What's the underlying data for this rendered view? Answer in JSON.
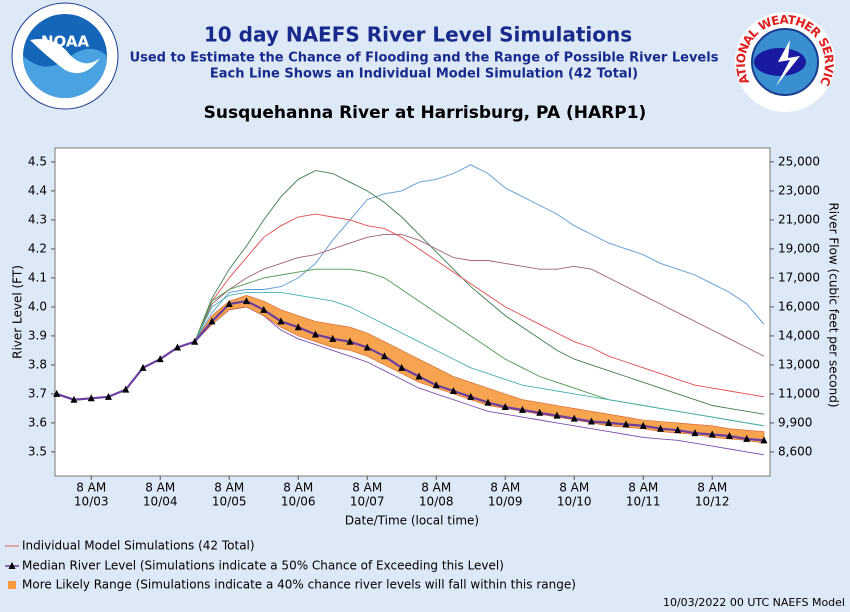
{
  "header": {
    "title": "10 day NAEFS River Level Simulations",
    "subtitle1": "Used to Estimate the Chance of Flooding and the Range of Possible River Levels",
    "subtitle2": "Each Line Shows an Individual Model Simulation (42 Total)",
    "noaa": "NOAA",
    "nws": "NATIONAL WEATHER SERVICE"
  },
  "chart_data": {
    "type": "line",
    "title": "Susquehanna River at Harrisburg, PA (HARP1)",
    "x_label": "Date/Time (local time)",
    "y_label": "River Level (FT)",
    "y2_label": "River Flow (cubic feet per second)",
    "ylim": [
      3.417,
      4.548
    ],
    "yticks": [
      3.5,
      3.6,
      3.7,
      3.8,
      3.9,
      {
        "value": 4.0,
        "label": "4.0"
      },
      4.1,
      4.2,
      4.3,
      4.4,
      4.5
    ],
    "y2ticks": [
      {
        "value": 8600,
        "label": "8,600"
      },
      {
        "value": 9900,
        "label": "9,900"
      },
      {
        "value": 11000,
        "label": "11,000"
      },
      {
        "value": 13000,
        "label": "13,000"
      },
      {
        "value": 14000,
        "label": "14,000"
      },
      {
        "value": 16000,
        "label": "16,000"
      },
      {
        "value": 17000,
        "label": "17,000"
      },
      {
        "value": 19000,
        "label": "19,000"
      },
      {
        "value": 21000,
        "label": "21,000"
      },
      {
        "value": 23000,
        "label": "23,000"
      },
      {
        "value": 25000,
        "label": "25,000"
      }
    ],
    "xticks": [
      {
        "value": 2,
        "label": [
          "8 AM",
          "10/03"
        ]
      },
      {
        "value": 6,
        "label": [
          "8 AM",
          "10/04"
        ]
      },
      {
        "value": 10,
        "label": [
          "8 AM",
          "10/05"
        ]
      },
      {
        "value": 14,
        "label": [
          "8 AM",
          "10/06"
        ]
      },
      {
        "value": 18,
        "label": [
          "8 AM",
          "10/07"
        ]
      },
      {
        "value": 22,
        "label": [
          "8 AM",
          "10/08"
        ]
      },
      {
        "value": 26,
        "label": [
          "8 AM",
          "10/09"
        ]
      },
      {
        "value": 30,
        "label": [
          "8 AM",
          "10/10"
        ]
      },
      {
        "value": 34,
        "label": [
          "8 AM",
          "10/11"
        ]
      },
      {
        "value": 38,
        "label": [
          "8 AM",
          "10/12"
        ]
      }
    ],
    "simulations": {
      "name": "Individual Model Simulations (42 Total)",
      "color": "#e06060",
      "colors": [
        "#5b9bd5",
        "#3f7f4f",
        "#e05050",
        "#a0607a",
        "#4e9a4e",
        "#4ab0b0",
        "#7b4fb0"
      ],
      "values": [
        [
          3.7,
          3.68,
          3.685,
          3.69,
          3.715,
          3.79,
          3.82,
          3.86,
          3.88,
          3.98,
          4.05,
          4.06,
          4.06,
          4.07,
          4.1,
          4.15,
          4.23,
          4.3,
          4.37,
          4.39,
          4.4,
          4.43,
          4.44,
          4.46,
          4.49,
          4.46,
          4.41,
          4.38,
          4.35,
          4.32,
          4.28,
          4.25,
          4.22,
          4.2,
          4.18,
          4.15,
          4.13,
          4.11,
          4.08,
          4.05,
          4.01,
          3.94
        ],
        [
          3.7,
          3.68,
          3.685,
          3.69,
          3.715,
          3.79,
          3.82,
          3.86,
          3.88,
          4.03,
          4.13,
          4.21,
          4.3,
          4.38,
          4.44,
          4.47,
          4.46,
          4.43,
          4.4,
          4.36,
          4.31,
          4.25,
          4.19,
          4.13,
          4.07,
          4.02,
          3.97,
          3.93,
          3.89,
          3.85,
          3.82,
          3.8,
          3.78,
          3.76,
          3.74,
          3.72,
          3.7,
          3.68,
          3.66,
          3.65,
          3.64,
          3.63
        ],
        [
          3.7,
          3.68,
          3.685,
          3.69,
          3.715,
          3.79,
          3.82,
          3.86,
          3.88,
          4.02,
          4.1,
          4.17,
          4.24,
          4.28,
          4.31,
          4.32,
          4.31,
          4.3,
          4.28,
          4.27,
          4.24,
          4.2,
          4.16,
          4.12,
          4.08,
          4.04,
          4.0,
          3.97,
          3.94,
          3.91,
          3.88,
          3.86,
          3.83,
          3.81,
          3.79,
          3.77,
          3.75,
          3.73,
          3.72,
          3.71,
          3.7,
          3.69
        ],
        [
          3.7,
          3.68,
          3.685,
          3.69,
          3.715,
          3.79,
          3.82,
          3.86,
          3.88,
          4.01,
          4.06,
          4.1,
          4.13,
          4.15,
          4.17,
          4.18,
          4.2,
          4.22,
          4.24,
          4.25,
          4.25,
          4.23,
          4.2,
          4.17,
          4.16,
          4.16,
          4.15,
          4.14,
          4.13,
          4.13,
          4.14,
          4.13,
          4.1,
          4.07,
          4.04,
          4.01,
          3.98,
          3.95,
          3.92,
          3.89,
          3.86,
          3.83
        ],
        [
          3.7,
          3.68,
          3.685,
          3.69,
          3.715,
          3.79,
          3.82,
          3.86,
          3.88,
          4.02,
          4.06,
          4.08,
          4.1,
          4.11,
          4.12,
          4.13,
          4.13,
          4.13,
          4.12,
          4.1,
          4.06,
          4.02,
          3.98,
          3.94,
          3.9,
          3.86,
          3.82,
          3.79,
          3.76,
          3.74,
          3.72,
          3.7,
          3.68,
          3.67,
          3.66,
          3.65,
          3.64,
          3.63,
          3.62,
          3.61,
          3.6,
          3.59
        ],
        [
          3.7,
          3.68,
          3.685,
          3.69,
          3.715,
          3.79,
          3.82,
          3.86,
          3.88,
          4.0,
          4.04,
          4.05,
          4.05,
          4.05,
          4.04,
          4.03,
          4.02,
          4.0,
          3.97,
          3.94,
          3.91,
          3.88,
          3.85,
          3.82,
          3.79,
          3.77,
          3.75,
          3.73,
          3.72,
          3.71,
          3.7,
          3.69,
          3.68,
          3.67,
          3.66,
          3.65,
          3.64,
          3.63,
          3.62,
          3.61,
          3.6,
          3.59
        ],
        [
          3.7,
          3.68,
          3.685,
          3.69,
          3.715,
          3.79,
          3.82,
          3.86,
          3.88,
          3.94,
          3.99,
          4.0,
          3.97,
          3.92,
          3.89,
          3.87,
          3.85,
          3.83,
          3.81,
          3.78,
          3.75,
          3.72,
          3.7,
          3.68,
          3.66,
          3.64,
          3.63,
          3.62,
          3.61,
          3.6,
          3.59,
          3.58,
          3.57,
          3.56,
          3.55,
          3.545,
          3.54,
          3.53,
          3.52,
          3.51,
          3.5,
          3.49
        ]
      ]
    },
    "range": {
      "name": "More Likely Range (Simulations indicate a 40% chance river levels will fall within this range)",
      "color": "#f59a3c",
      "low": [
        3.7,
        3.68,
        3.685,
        3.69,
        3.715,
        3.79,
        3.82,
        3.86,
        3.88,
        3.94,
        3.99,
        4.0,
        3.97,
        3.93,
        3.9,
        3.88,
        3.86,
        3.85,
        3.83,
        3.8,
        3.77,
        3.74,
        3.72,
        3.7,
        3.68,
        3.66,
        3.65,
        3.64,
        3.63,
        3.62,
        3.61,
        3.6,
        3.59,
        3.585,
        3.58,
        3.57,
        3.565,
        3.56,
        3.55,
        3.545,
        3.54,
        3.53
      ],
      "high": [
        3.7,
        3.68,
        3.685,
        3.69,
        3.715,
        3.79,
        3.82,
        3.86,
        3.88,
        3.97,
        4.02,
        4.04,
        4.02,
        3.99,
        3.97,
        3.95,
        3.94,
        3.93,
        3.91,
        3.88,
        3.85,
        3.82,
        3.79,
        3.76,
        3.74,
        3.72,
        3.7,
        3.68,
        3.67,
        3.66,
        3.65,
        3.64,
        3.63,
        3.62,
        3.61,
        3.605,
        3.6,
        3.595,
        3.59,
        3.58,
        3.575,
        3.57
      ]
    },
    "median": {
      "name": "Median River Level (Simulations indicate a 50% Chance of Exceeding this Level)",
      "color": "#000000",
      "values": [
        3.7,
        3.68,
        3.685,
        3.69,
        3.715,
        3.79,
        3.82,
        3.86,
        3.88,
        3.95,
        4.01,
        4.02,
        3.99,
        3.95,
        3.93,
        3.905,
        3.89,
        3.88,
        3.86,
        3.83,
        3.79,
        3.76,
        3.73,
        3.71,
        3.69,
        3.67,
        3.655,
        3.645,
        3.635,
        3.625,
        3.615,
        3.605,
        3.6,
        3.595,
        3.59,
        3.58,
        3.575,
        3.565,
        3.56,
        3.555,
        3.545,
        3.54
      ]
    },
    "grid": false
  },
  "footer": "10/03/2022 00 UTC NAEFS Model"
}
